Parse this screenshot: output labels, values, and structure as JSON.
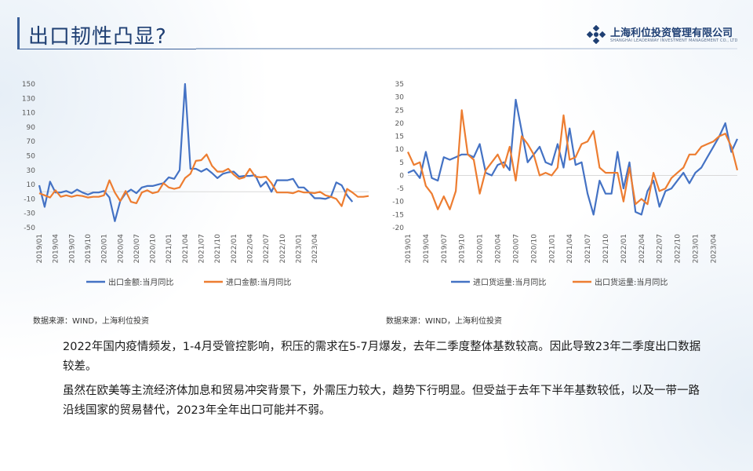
{
  "header": {
    "title": "出口韧性凸显?",
    "logo_name": "上海利位投资管理有限公司",
    "logo_en": "SHANGHAI LEADERWAY INVESTMENT MANAGEMENT CO., LTD"
  },
  "colors": {
    "blue": "#4472c4",
    "orange": "#ed7d31",
    "title": "#1f3f73"
  },
  "chart_data": [
    {
      "type": "line",
      "x_labels": [
        "2019/01",
        "2019/04",
        "2019/07",
        "2019/10",
        "2020/01",
        "2020/04",
        "2020/07",
        "2020/10",
        "2021/01",
        "2021/04",
        "2021/07",
        "2021/10",
        "2022/01",
        "2022/04",
        "2022/07",
        "2022/10",
        "2023/01",
        "2023/04"
      ],
      "y_ticks": [
        "150",
        "130",
        "110",
        "90",
        "70",
        "50",
        "30",
        "10",
        "-10",
        "-30",
        "-50"
      ],
      "ylim": [
        -50,
        150
      ],
      "series": [
        {
          "name": "出口金额:当月同比",
          "color": "#4472c4",
          "values": [
            9,
            -21,
            14,
            -1,
            -1,
            1,
            -2,
            3,
            -1,
            -4,
            -1,
            -1,
            1,
            -8,
            -41,
            -13,
            -2,
            3,
            -2,
            6,
            8,
            8,
            10,
            12,
            20,
            18,
            30,
            150,
            32,
            32,
            28,
            32,
            26,
            19,
            25,
            27,
            28,
            21,
            22,
            22,
            23,
            7,
            14,
            0,
            16,
            16,
            16,
            18,
            6,
            6,
            -1,
            -9,
            -9,
            -10,
            -7,
            13,
            9,
            -5,
            -14
          ]
        },
        {
          "name": "进口金额:当月同比",
          "color": "#ed7d31",
          "values": [
            -2,
            -5,
            -8,
            2,
            -7,
            -5,
            -7,
            -5,
            -6,
            -8,
            -7,
            -7,
            -5,
            16,
            -1,
            -13,
            1,
            -14,
            -16,
            -1,
            2,
            -2,
            0,
            12,
            6,
            4,
            6,
            19,
            25,
            43,
            44,
            52,
            36,
            28,
            28,
            32,
            24,
            18,
            20,
            32,
            21,
            20,
            21,
            12,
            -1,
            -1,
            -1,
            -2,
            1,
            -1,
            -1,
            -2,
            0,
            -5,
            -7,
            -10,
            -20,
            4,
            -1,
            -7,
            -7,
            -6
          ]
        }
      ]
    },
    {
      "type": "line",
      "x_labels": [
        "2019/01",
        "2019/04",
        "2019/07",
        "2019/10",
        "2020/01",
        "2020/04",
        "2020/07",
        "2020/10",
        "2021/01",
        "2021/04",
        "2021/07",
        "2021/10",
        "2022/01",
        "2022/04",
        "2022/07",
        "2022/10",
        "2023/01",
        "2023/04"
      ],
      "y_ticks": [
        "35",
        "30",
        "25",
        "20",
        "15",
        "10",
        "5",
        "0",
        "-5",
        "-10",
        "-15",
        "-20"
      ],
      "ylim": [
        -20,
        35
      ],
      "series": [
        {
          "name": "进口货运量:当月同比",
          "color": "#4472c4",
          "values": [
            1,
            2,
            -1,
            9,
            -1,
            -2,
            7,
            6,
            7,
            8,
            8,
            7,
            12,
            1,
            0,
            4,
            5,
            2,
            29,
            17,
            5,
            8,
            11,
            5,
            4,
            12,
            3,
            18,
            4,
            5,
            -7,
            -15,
            -2,
            -7,
            -7,
            9,
            -5,
            5,
            -14,
            -15,
            -6,
            -2,
            -12,
            -6,
            -5,
            -2,
            1,
            -3,
            1,
            3,
            7,
            11,
            15,
            20,
            9,
            14
          ]
        },
        {
          "name": "出口货运量:当月同比",
          "color": "#ed7d31",
          "values": [
            9,
            4,
            5,
            -4,
            -7,
            -13,
            -8,
            -13,
            -6,
            25,
            8,
            6,
            -7,
            2,
            5,
            8,
            3,
            11,
            -2,
            15,
            12,
            8,
            0,
            1,
            0,
            3,
            23,
            6,
            7,
            12,
            13,
            17,
            3,
            1,
            1,
            1,
            -10,
            3,
            -11,
            -9,
            -11,
            1,
            -6,
            -5,
            -1,
            1,
            3,
            8,
            8,
            11,
            12,
            13,
            15,
            16,
            11,
            2
          ]
        }
      ]
    }
  ],
  "sources": {
    "left": "数据来源：WIND，上海利位投资",
    "right": "数据来源：WIND，上海利位投资"
  },
  "body": {
    "p1": "2022年国内疫情频发，1-4月受管控影响，积压的需求在5-7月爆发，去年二季度整体基数较高。因此导致23年二季度出口数据较差。",
    "p2": "虽然在欧美等主流经济体加息和贸易冲突背景下，外需压力较大，趋势下行明显。但受益于去年下半年基数较低，以及一带一路沿线国家的贸易替代，2023年全年出口可能并不弱。"
  }
}
